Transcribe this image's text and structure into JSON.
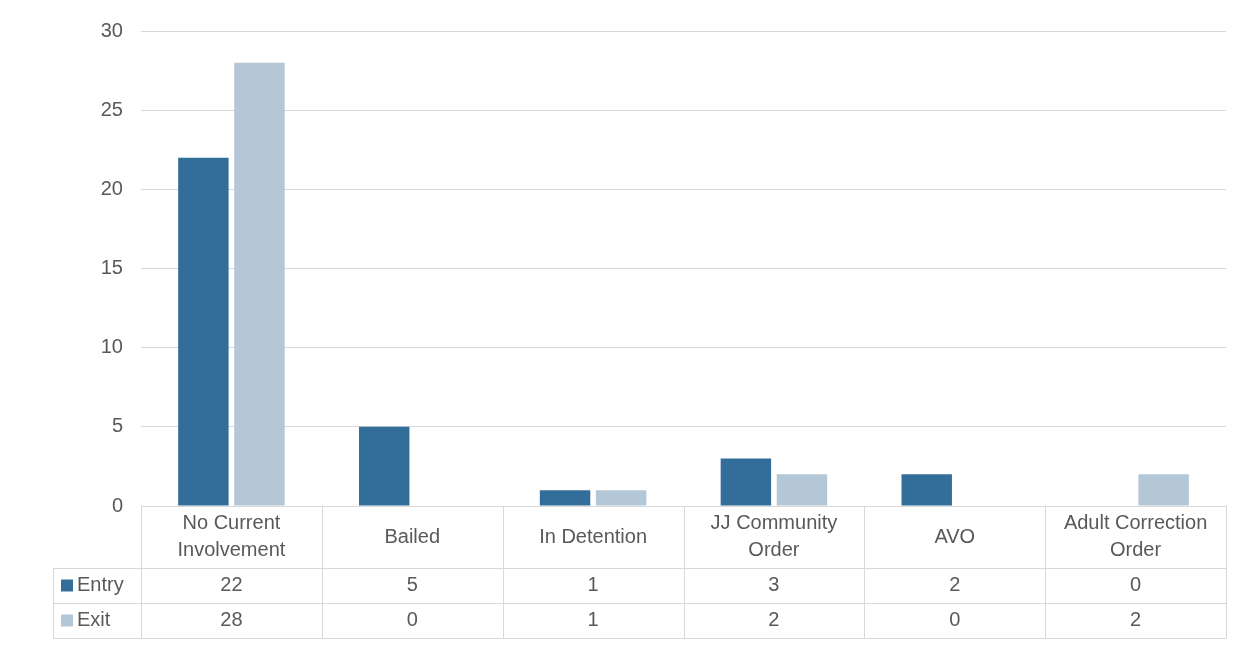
{
  "chart_data": {
    "type": "bar",
    "categories": [
      "No Current Involvement",
      "Bailed",
      "In Detention",
      "JJ Community Order",
      "AVO",
      "Adult Correction Order"
    ],
    "series": [
      {
        "name": "Entry",
        "color": "#336e9a",
        "values": [
          22,
          5,
          1,
          3,
          2,
          0
        ]
      },
      {
        "name": "Exit",
        "color": "#b4c7d7",
        "values": [
          28,
          0,
          1,
          2,
          0,
          2
        ]
      }
    ],
    "ylim": [
      0,
      30
    ],
    "yticks": [
      0,
      5,
      10,
      15,
      20,
      25,
      30
    ],
    "grid": "y",
    "legend": "bottom left",
    "data_labels": true
  }
}
